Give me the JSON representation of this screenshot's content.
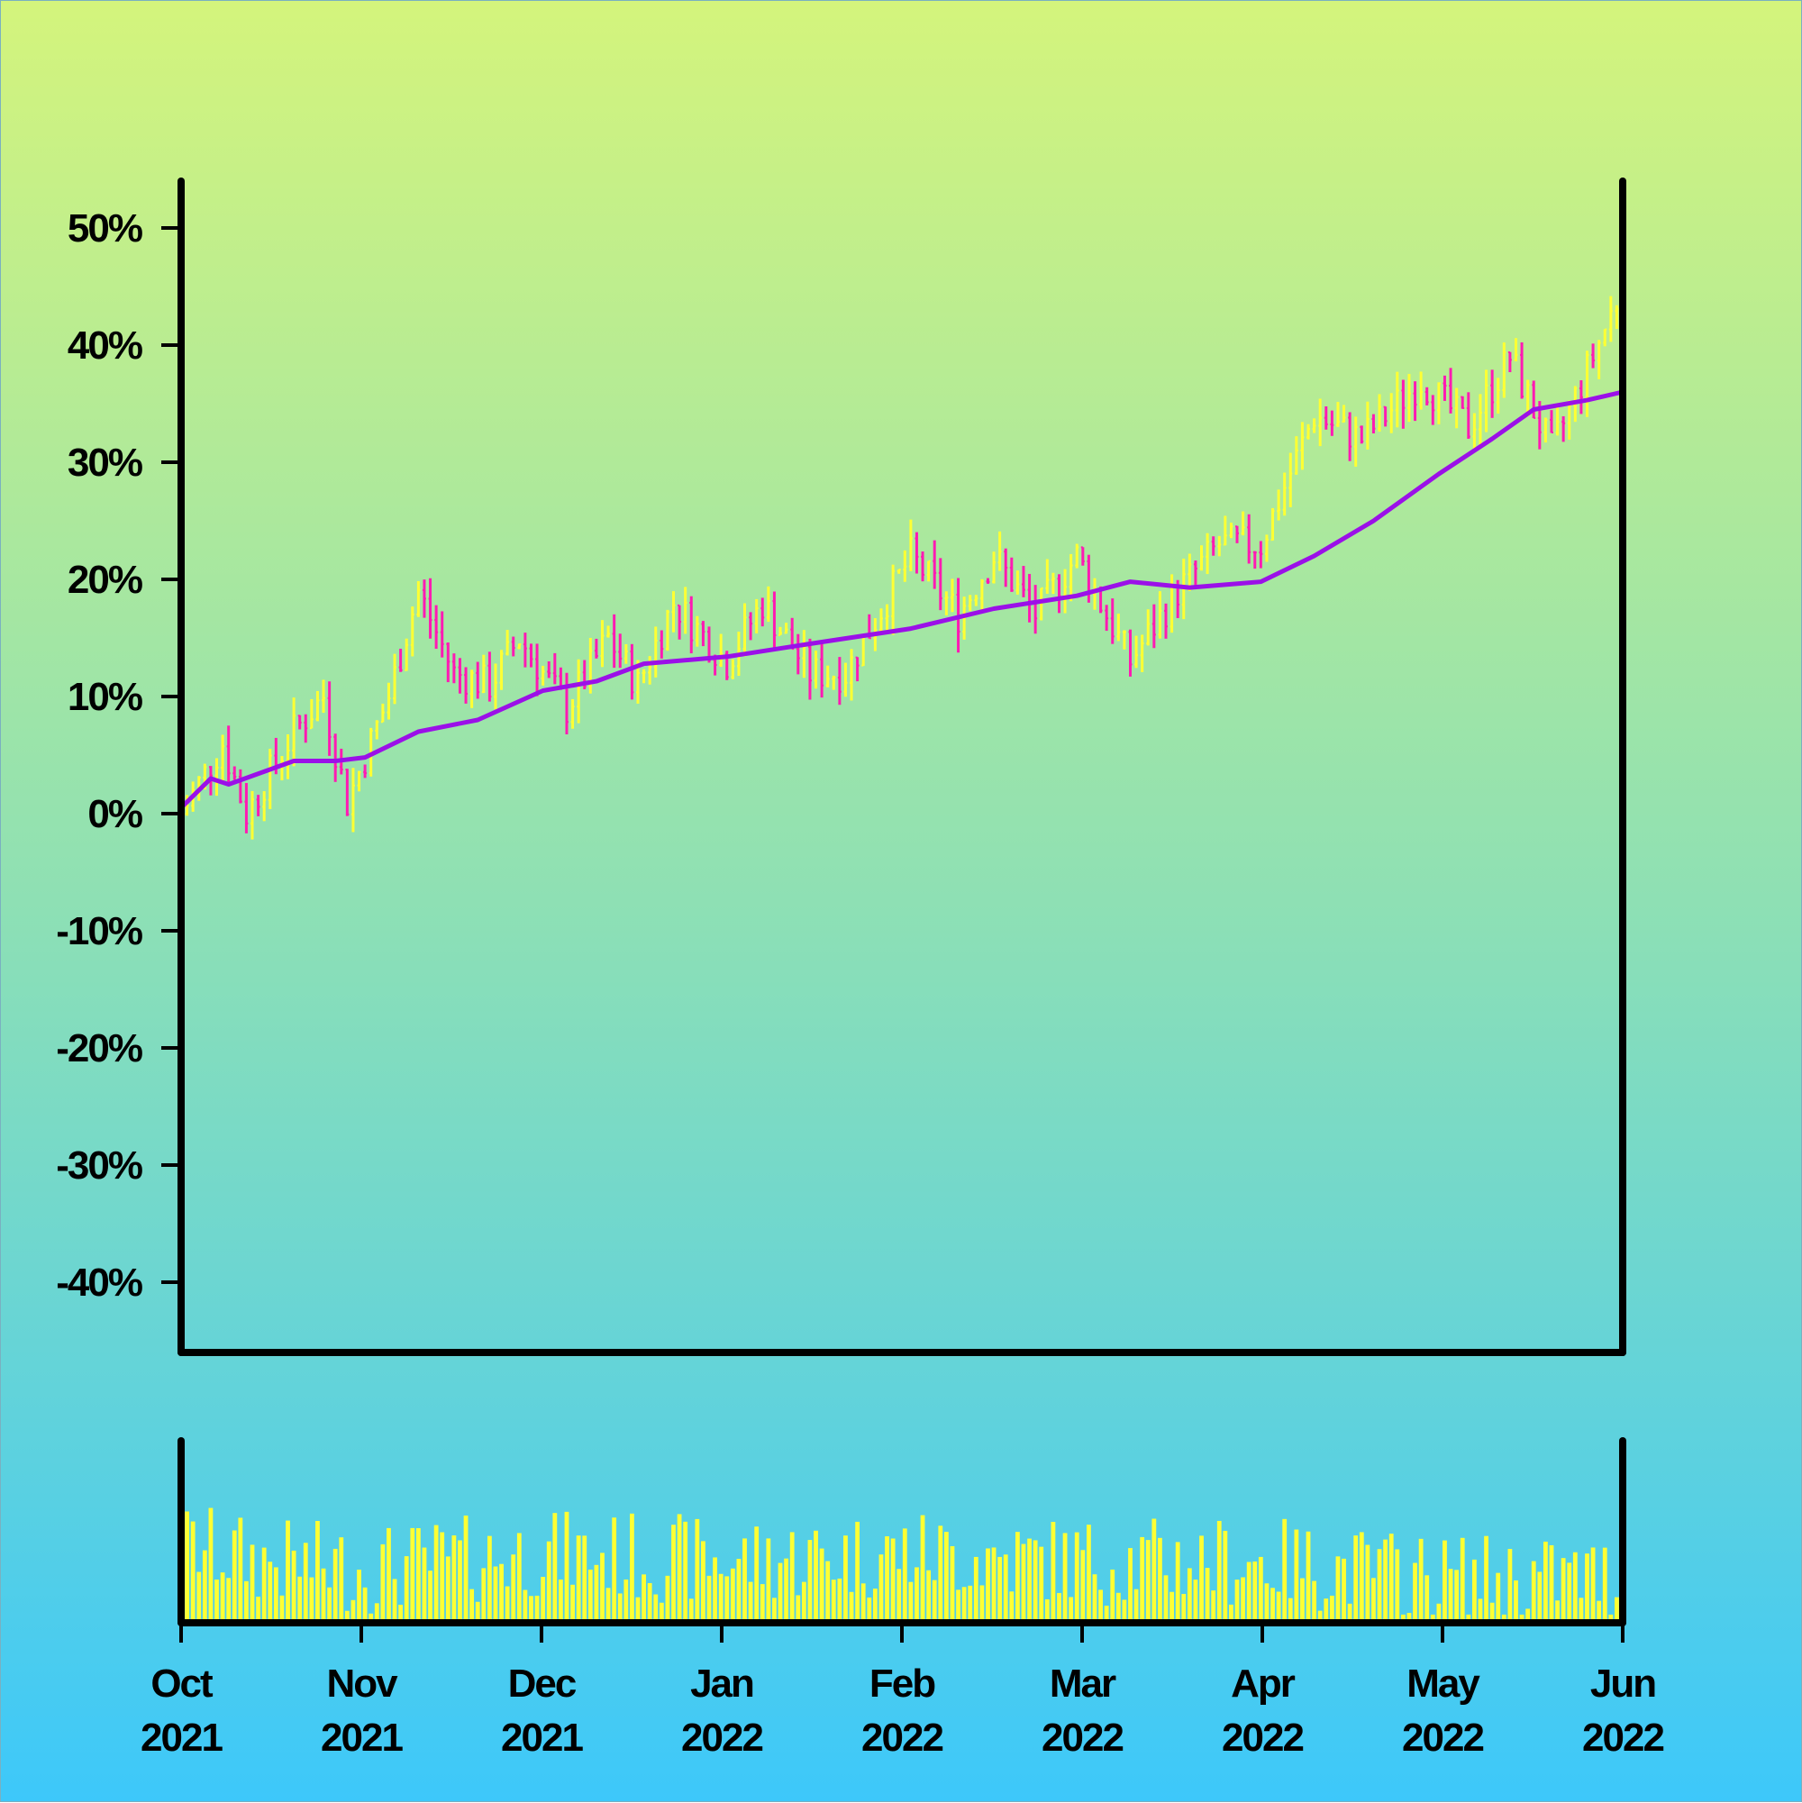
{
  "chart_data": [
    {
      "type": "ohlc",
      "title": "",
      "xlabel": "",
      "ylabel": "",
      "unit": "%",
      "ylim": [
        -46,
        54
      ],
      "yticks": [
        50,
        40,
        30,
        20,
        10,
        0,
        -10,
        -20,
        -30,
        -40
      ],
      "ytick_labels": [
        "50%",
        "40%",
        "30%",
        "20%",
        "10%",
        "0%",
        "-10%",
        "-20%",
        "-30%",
        "-40%"
      ],
      "xlim": [
        "2021-10-01",
        "2022-06-01"
      ],
      "grid": false,
      "colors": {
        "up": "#ffff33",
        "down": "#ff1ab3",
        "moving_average": "#9b10e8"
      },
      "close_anchors": [
        {
          "date": "2021-10-01",
          "value": 0
        },
        {
          "date": "2021-10-08",
          "value": 6
        },
        {
          "date": "2021-10-12",
          "value": 0
        },
        {
          "date": "2021-10-20",
          "value": 7
        },
        {
          "date": "2021-10-25",
          "value": 10
        },
        {
          "date": "2021-10-29",
          "value": 1
        },
        {
          "date": "2021-11-05",
          "value": 10
        },
        {
          "date": "2021-11-10",
          "value": 19
        },
        {
          "date": "2021-11-16",
          "value": 12
        },
        {
          "date": "2021-11-22",
          "value": 11
        },
        {
          "date": "2021-11-27",
          "value": 15
        },
        {
          "date": "2021-12-05",
          "value": 9
        },
        {
          "date": "2021-12-12",
          "value": 15
        },
        {
          "date": "2021-12-17",
          "value": 11
        },
        {
          "date": "2021-12-23",
          "value": 18
        },
        {
          "date": "2022-01-01",
          "value": 13
        },
        {
          "date": "2022-01-07",
          "value": 18
        },
        {
          "date": "2022-01-15",
          "value": 12
        },
        {
          "date": "2022-01-21",
          "value": 12
        },
        {
          "date": "2022-02-01",
          "value": 22
        },
        {
          "date": "2022-02-09",
          "value": 17
        },
        {
          "date": "2022-02-15",
          "value": 22
        },
        {
          "date": "2022-02-22",
          "value": 17
        },
        {
          "date": "2022-03-01",
          "value": 22
        },
        {
          "date": "2022-03-10",
          "value": 13
        },
        {
          "date": "2022-03-18",
          "value": 19
        },
        {
          "date": "2022-03-25",
          "value": 23
        },
        {
          "date": "2022-04-01",
          "value": 23
        },
        {
          "date": "2022-04-10",
          "value": 34
        },
        {
          "date": "2022-04-18",
          "value": 32
        },
        {
          "date": "2022-04-28",
          "value": 37
        },
        {
          "date": "2022-05-06",
          "value": 33
        },
        {
          "date": "2022-05-13",
          "value": 39
        },
        {
          "date": "2022-05-20",
          "value": 31
        },
        {
          "date": "2022-05-27",
          "value": 39
        },
        {
          "date": "2022-06-01",
          "value": 45
        }
      ],
      "moving_average": {
        "name": "",
        "points": [
          {
            "date": "2021-10-01",
            "value": 0.5
          },
          {
            "date": "2021-10-06",
            "value": 3
          },
          {
            "date": "2021-10-09",
            "value": 2.5
          },
          {
            "date": "2021-10-20",
            "value": 4.5
          },
          {
            "date": "2021-10-27",
            "value": 4.5
          },
          {
            "date": "2021-11-01",
            "value": 4.8
          },
          {
            "date": "2021-11-10",
            "value": 7
          },
          {
            "date": "2021-11-20",
            "value": 8
          },
          {
            "date": "2021-12-01",
            "value": 10.5
          },
          {
            "date": "2021-12-10",
            "value": 11.3
          },
          {
            "date": "2021-12-18",
            "value": 12.8
          },
          {
            "date": "2022-01-01",
            "value": 13.4
          },
          {
            "date": "2022-01-15",
            "value": 14.5
          },
          {
            "date": "2022-02-01",
            "value": 15.8
          },
          {
            "date": "2022-02-15",
            "value": 17.5
          },
          {
            "date": "2022-03-01",
            "value": 18.6
          },
          {
            "date": "2022-03-10",
            "value": 19.8
          },
          {
            "date": "2022-03-20",
            "value": 19.3
          },
          {
            "date": "2022-04-01",
            "value": 19.8
          },
          {
            "date": "2022-04-10",
            "value": 22
          },
          {
            "date": "2022-04-20",
            "value": 25
          },
          {
            "date": "2022-05-01",
            "value": 29
          },
          {
            "date": "2022-05-10",
            "value": 32
          },
          {
            "date": "2022-05-17",
            "value": 34.5
          },
          {
            "date": "2022-05-26",
            "value": 35.3
          },
          {
            "date": "2022-06-01",
            "value": 36
          }
        ]
      }
    },
    {
      "type": "bar",
      "title": "",
      "xlabel": "",
      "ylabel": "",
      "xlim": [
        "2021-10-01",
        "2022-06-01"
      ],
      "color": "#ffff33",
      "x_tick_labels": [
        {
          "month": "Oct",
          "year": "2021"
        },
        {
          "month": "Nov",
          "year": "2021"
        },
        {
          "month": "Dec",
          "year": "2021"
        },
        {
          "month": "Jan",
          "year": "2022"
        },
        {
          "month": "Feb",
          "year": "2022"
        },
        {
          "month": "Mar",
          "year": "2022"
        },
        {
          "month": "Apr",
          "year": "2022"
        },
        {
          "month": "May",
          "year": "2022"
        },
        {
          "month": "Jun",
          "year": "2022"
        }
      ],
      "volume_profile": [
        {
          "date": "2021-10-01",
          "value": 0.45
        },
        {
          "date": "2021-10-15",
          "value": 0.35
        },
        {
          "date": "2021-11-01",
          "value": 0.3
        },
        {
          "date": "2021-12-01",
          "value": 0.4
        },
        {
          "date": "2022-01-01",
          "value": 0.35
        },
        {
          "date": "2022-02-01",
          "value": 0.4
        },
        {
          "date": "2022-03-01",
          "value": 0.35
        },
        {
          "date": "2022-04-01",
          "value": 0.35
        },
        {
          "date": "2022-05-01",
          "value": 0.25
        },
        {
          "date": "2022-06-01",
          "value": 0.25
        }
      ]
    }
  ]
}
